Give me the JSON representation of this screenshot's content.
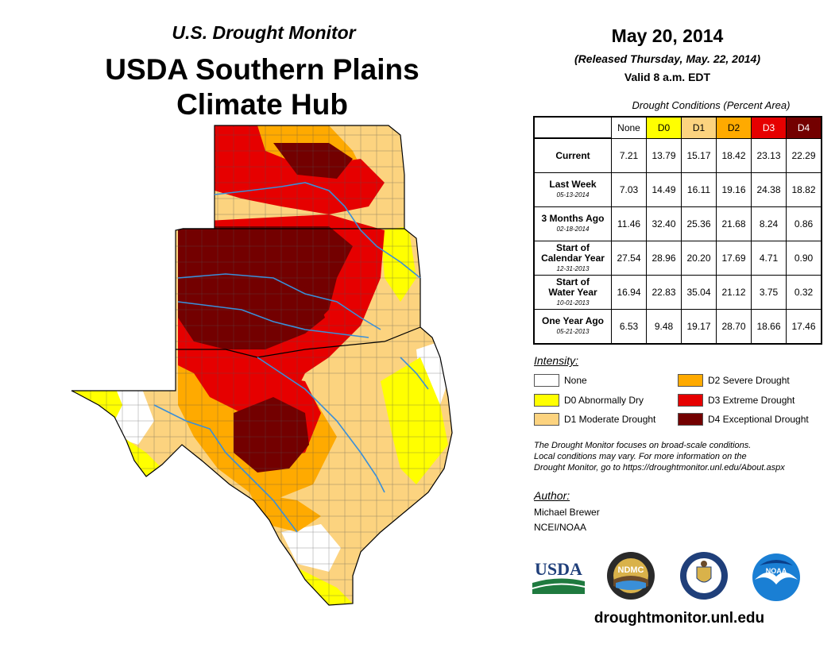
{
  "header": {
    "subtitle": "U.S. Drought Monitor",
    "title_line1": "USDA Southern Plains",
    "title_line2": "Climate Hub"
  },
  "release": {
    "date": "May 20, 2014",
    "released": "(Released Thursday, May. 22, 2014)",
    "valid": "Valid 8 a.m. EDT"
  },
  "table": {
    "caption": "Drought Conditions (Percent Area)",
    "columns": [
      "None",
      "D0",
      "D1",
      "D2",
      "D3",
      "D4"
    ],
    "column_colors": [
      "#ffffff",
      "#ffff00",
      "#fcd37f",
      "#ffaa00",
      "#e60000",
      "#730000"
    ],
    "rows": [
      {
        "label": "Current",
        "label2": "",
        "date": "",
        "values": [
          "7.21",
          "13.79",
          "15.17",
          "18.42",
          "23.13",
          "22.29"
        ]
      },
      {
        "label": "Last Week",
        "label2": "",
        "date": "05-13-2014",
        "values": [
          "7.03",
          "14.49",
          "16.11",
          "19.16",
          "24.38",
          "18.82"
        ]
      },
      {
        "label": "3 Months Ago",
        "label2": "",
        "date": "02-18-2014",
        "values": [
          "11.46",
          "32.40",
          "25.36",
          "21.68",
          "8.24",
          "0.86"
        ]
      },
      {
        "label": "Start of",
        "label2": "Calendar Year",
        "date": "12-31-2013",
        "values": [
          "27.54",
          "28.96",
          "20.20",
          "17.69",
          "4.71",
          "0.90"
        ]
      },
      {
        "label": "Start of",
        "label2": "Water Year",
        "date": "10-01-2013",
        "values": [
          "16.94",
          "22.83",
          "35.04",
          "21.12",
          "3.75",
          "0.32"
        ]
      },
      {
        "label": "One Year Ago",
        "label2": "",
        "date": "05-21-2013",
        "values": [
          "6.53",
          "9.48",
          "19.17",
          "28.70",
          "18.66",
          "17.46"
        ]
      }
    ]
  },
  "legend": {
    "title": "Intensity:",
    "items": [
      {
        "label": "None",
        "color": "#ffffff"
      },
      {
        "label": "D0 Abnormally Dry",
        "color": "#ffff00"
      },
      {
        "label": "D1 Moderate Drought",
        "color": "#fcd37f"
      },
      {
        "label": "D2 Severe Drought",
        "color": "#ffaa00"
      },
      {
        "label": "D3 Extreme Drought",
        "color": "#e60000"
      },
      {
        "label": "D4 Exceptional Drought",
        "color": "#730000"
      }
    ]
  },
  "notes": {
    "line1": "The Drought Monitor focuses on broad-scale conditions.",
    "line2": "Local conditions may vary. For more information on the",
    "line3": "Drought Monitor, go to https://droughtmonitor.unl.edu/About.aspx"
  },
  "author": {
    "title": "Author:",
    "name": "Michael Brewer",
    "org": "NCEI/NOAA"
  },
  "logos": {
    "usda": "USDA",
    "ndmc": "NDMC",
    "noaa": "NOAA"
  },
  "website": "droughtmonitor.unl.edu",
  "map": {
    "region": "Kansas, Oklahoma, Texas",
    "colors": {
      "none": "#ffffff",
      "d0": "#ffff00",
      "d1": "#fcd37f",
      "d2": "#ffaa00",
      "d3": "#e60000",
      "d4": "#730000",
      "river": "#3a8fd8",
      "county": "#444444"
    }
  }
}
